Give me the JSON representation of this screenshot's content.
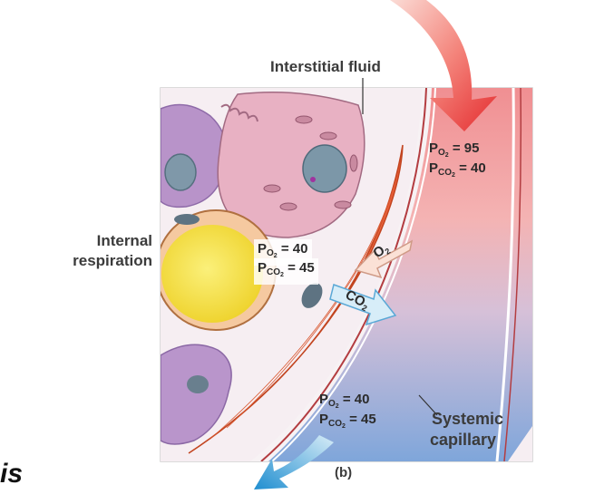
{
  "labels": {
    "interstitial_fluid": "Interstitial fluid",
    "internal_respiration_line1": "Internal",
    "internal_respiration_line2": "respiration",
    "systemic_capillary_line1": "Systemic",
    "systemic_capillary_line2": "capillary",
    "panel": "(b)",
    "corner_fragment": "is"
  },
  "gas_values": {
    "arterial": {
      "po2_prefix": "P",
      "o2": "O",
      "o2_sub": "2",
      "po2_value": "= 95",
      "pco2_prefix": "P",
      "co2": "CO",
      "co2_sub": "2",
      "pco2_value": "= 40"
    },
    "tissue": {
      "po2_prefix": "P",
      "o2": "O",
      "o2_sub": "2",
      "po2_value": "= 40",
      "pco2_prefix": "P",
      "co2": "CO",
      "co2_sub": "2",
      "pco2_value": "= 45"
    },
    "venous": {
      "po2_prefix": "P",
      "o2": "O",
      "o2_sub": "2",
      "po2_value": "= 40",
      "pco2_prefix": "P",
      "co2": "CO",
      "co2_sub": "2",
      "pco2_value": "= 45"
    }
  },
  "arrows": {
    "o2": {
      "text": "O",
      "sub": "2"
    },
    "co2": {
      "text": "CO",
      "sub": "2"
    }
  },
  "colors": {
    "arterial_red": "#e8373a",
    "venous_blue": "#2e8fd1",
    "capillary_pink": "#f3a3a6",
    "capillary_blue": "#9fb8df",
    "muscle_orange": "#f0764a",
    "cell_pink": "#e9b1c2",
    "cell_purple": "#b08dc6",
    "fat_yellow": "#f3df3a",
    "nucleus_gray": "#7c97a8"
  }
}
